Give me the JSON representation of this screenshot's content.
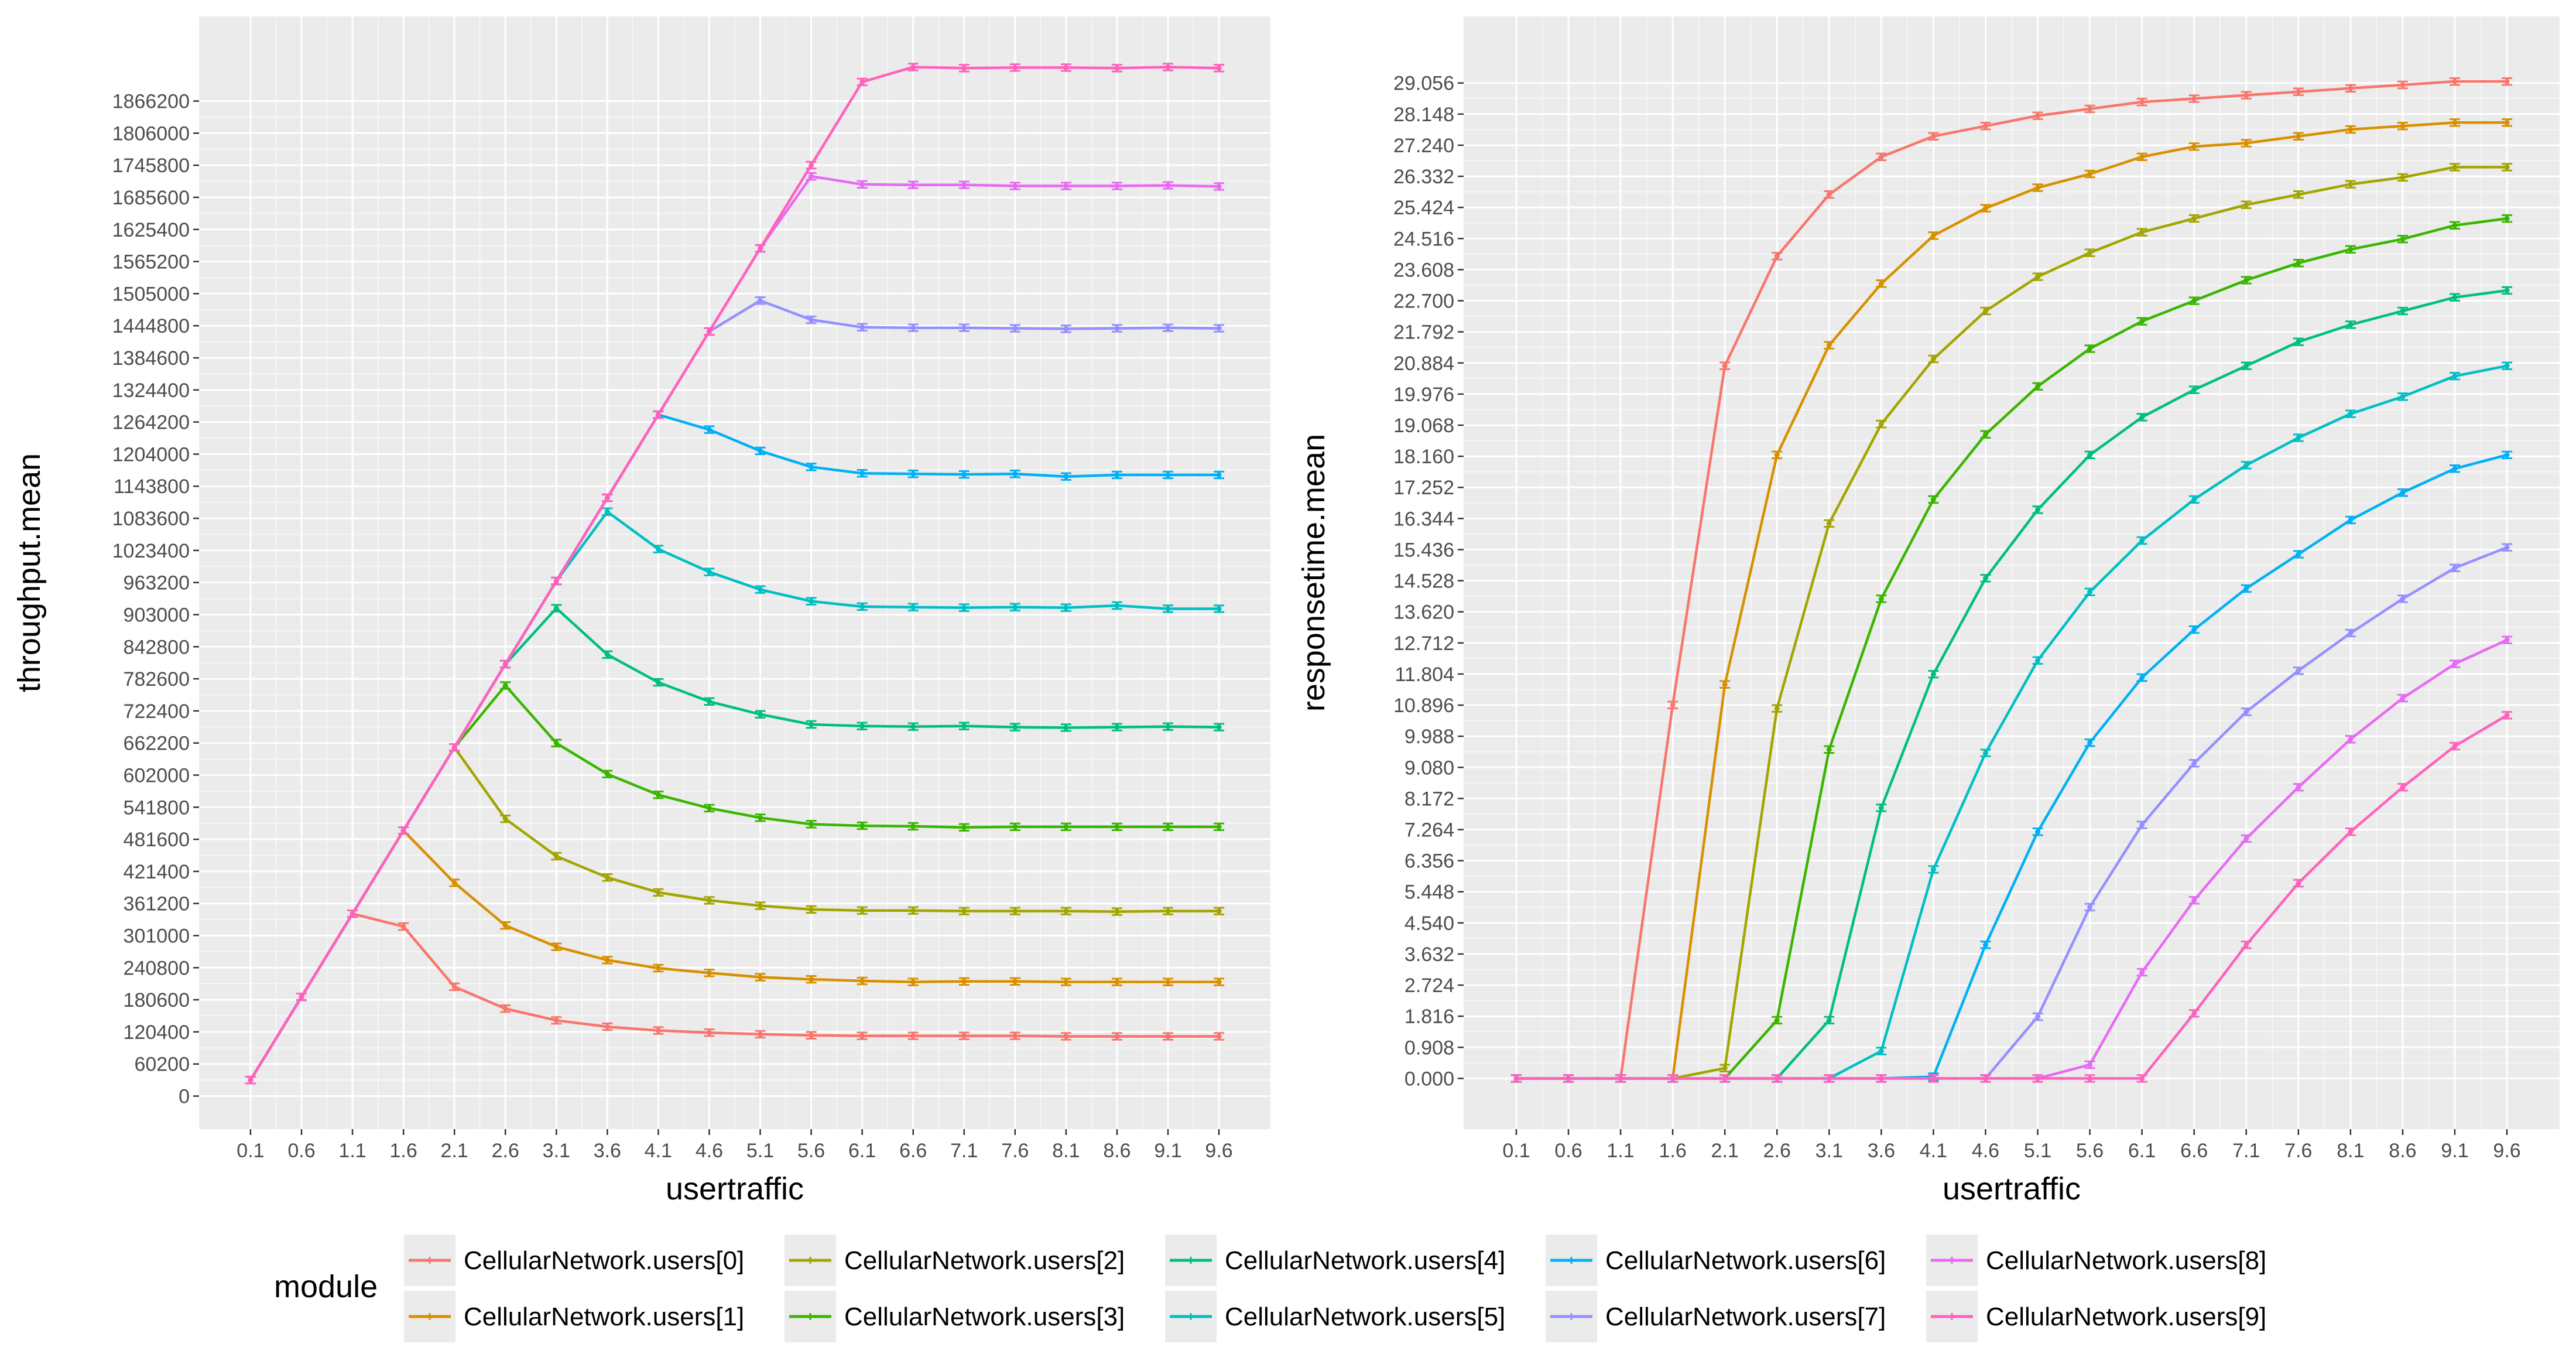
{
  "colors": {
    "panel_bg": "#ebebeb",
    "grid_major": "#ffffff",
    "tick_text": "#4d4d4d",
    "tick_mark": "#333333"
  },
  "legend": {
    "title": "module",
    "position": "bottom",
    "entries": [
      {
        "name": "CellularNetwork.users[0]",
        "color": "#F8766D"
      },
      {
        "name": "CellularNetwork.users[1]",
        "color": "#D89000"
      },
      {
        "name": "CellularNetwork.users[2]",
        "color": "#A3A500"
      },
      {
        "name": "CellularNetwork.users[3]",
        "color": "#39B600"
      },
      {
        "name": "CellularNetwork.users[4]",
        "color": "#00BF7D"
      },
      {
        "name": "CellularNetwork.users[5]",
        "color": "#00BFC4"
      },
      {
        "name": "CellularNetwork.users[6]",
        "color": "#00B0F6"
      },
      {
        "name": "CellularNetwork.users[7]",
        "color": "#9590FF"
      },
      {
        "name": "CellularNetwork.users[8]",
        "color": "#E76BF3"
      },
      {
        "name": "CellularNetwork.users[9]",
        "color": "#FF62BC"
      }
    ]
  },
  "chart_data": [
    {
      "type": "line",
      "title": "",
      "xlabel": "usertraffic",
      "ylabel": "throughput.mean",
      "grid": true,
      "error_bars": true,
      "x": [
        0.1,
        0.6,
        1.1,
        1.6,
        2.1,
        2.6,
        3.1,
        3.6,
        4.1,
        4.6,
        5.1,
        5.6,
        6.1,
        6.6,
        7.1,
        7.6,
        8.1,
        8.6,
        9.1,
        9.6
      ],
      "x_tick_labels": [
        "0.1",
        "0.6",
        "1.1",
        "1.6",
        "2.1",
        "2.6",
        "3.1",
        "3.6",
        "4.1",
        "4.6",
        "5.1",
        "5.6",
        "6.1",
        "6.6",
        "7.1",
        "7.6",
        "8.1",
        "8.6",
        "9.1",
        "9.6"
      ],
      "xlim": [
        -0.405,
        10.105
      ],
      "ylim": [
        -62000,
        2025000
      ],
      "y_ticks": [
        0,
        60200,
        120400,
        180600,
        240800,
        301000,
        361200,
        421400,
        481600,
        541800,
        602000,
        662200,
        722400,
        782600,
        842800,
        903000,
        963200,
        1023400,
        1083600,
        1143800,
        1204000,
        1264200,
        1324400,
        1384600,
        1444800,
        1505000,
        1565200,
        1625400,
        1685600,
        1745800,
        1806000,
        1866200
      ],
      "y_tick_labels": [
        "0",
        "60200",
        "120400",
        "180600",
        "240800",
        "301000",
        "361200",
        "421400",
        "481600",
        "541800",
        "602000",
        "662200",
        "722400",
        "782600",
        "842800",
        "903000",
        "963200",
        "1023400",
        "1083600",
        "1143800",
        "1204000",
        "1264200",
        "1324400",
        "1384600",
        "1444800",
        "1505000",
        "1565200",
        "1625400",
        "1685600",
        "1745800",
        "1806000",
        "1866200"
      ],
      "series": [
        {
          "name": "CellularNetwork.users[0]",
          "values": [
            30000,
            186000,
            342000,
            318000,
            205000,
            164000,
            142000,
            130000,
            123000,
            119000,
            116000,
            114000,
            113000,
            113000,
            113000,
            113000,
            112000,
            112000,
            112000,
            112000
          ]
        },
        {
          "name": "CellularNetwork.users[1]",
          "values": [
            30000,
            186000,
            342000,
            498000,
            400000,
            320000,
            280000,
            255000,
            240000,
            231000,
            223000,
            219000,
            216000,
            214000,
            215000,
            215000,
            214000,
            214000,
            214000,
            214000
          ]
        },
        {
          "name": "CellularNetwork.users[2]",
          "values": [
            30000,
            186000,
            342000,
            498000,
            654000,
            520000,
            450000,
            410000,
            382000,
            367000,
            357000,
            350000,
            348000,
            348000,
            347000,
            347000,
            347000,
            346000,
            347000,
            347000
          ]
        },
        {
          "name": "CellularNetwork.users[3]",
          "values": [
            30000,
            186000,
            342000,
            498000,
            654000,
            770000,
            662000,
            604000,
            565000,
            540000,
            522000,
            510000,
            507000,
            506000,
            504000,
            505000,
            505000,
            505000,
            505000,
            505000
          ]
        },
        {
          "name": "CellularNetwork.users[4]",
          "values": [
            30000,
            186000,
            342000,
            498000,
            654000,
            810000,
            915000,
            828000,
            776000,
            740000,
            716000,
            697000,
            694000,
            693000,
            694000,
            692000,
            691000,
            692000,
            693000,
            692000
          ]
        },
        {
          "name": "CellularNetwork.users[5]",
          "values": [
            30000,
            186000,
            342000,
            498000,
            654000,
            810000,
            966000,
            1096000,
            1026000,
            983000,
            950000,
            928000,
            918000,
            917000,
            916000,
            917000,
            916000,
            920000,
            914000,
            914000
          ]
        },
        {
          "name": "CellularNetwork.users[6]",
          "values": [
            30000,
            186000,
            342000,
            498000,
            654000,
            810000,
            966000,
            1122000,
            1278000,
            1250000,
            1210000,
            1180000,
            1168000,
            1167000,
            1166000,
            1167000,
            1162000,
            1165000,
            1165000,
            1165000
          ]
        },
        {
          "name": "CellularNetwork.users[7]",
          "values": [
            30000,
            186000,
            342000,
            498000,
            654000,
            810000,
            966000,
            1122000,
            1278000,
            1434000,
            1492000,
            1456000,
            1442000,
            1441000,
            1441000,
            1440000,
            1439000,
            1440000,
            1441000,
            1440000
          ]
        },
        {
          "name": "CellularNetwork.users[8]",
          "values": [
            30000,
            186000,
            342000,
            498000,
            654000,
            810000,
            966000,
            1122000,
            1278000,
            1434000,
            1590000,
            1725000,
            1710000,
            1709000,
            1709000,
            1707000,
            1707000,
            1707000,
            1708000,
            1706000
          ]
        },
        {
          "name": "CellularNetwork.users[9]",
          "values": [
            30000,
            186000,
            342000,
            498000,
            654000,
            810000,
            966000,
            1122000,
            1278000,
            1434000,
            1590000,
            1746000,
            1902000,
            1930000,
            1928000,
            1929000,
            1929000,
            1928000,
            1930000,
            1928000
          ]
        }
      ]
    },
    {
      "type": "line",
      "title": "",
      "xlabel": "usertraffic",
      "ylabel": "responsetime.mean",
      "grid": true,
      "error_bars": true,
      "x": [
        0.1,
        0.6,
        1.1,
        1.6,
        2.1,
        2.6,
        3.1,
        3.6,
        4.1,
        4.6,
        5.1,
        5.6,
        6.1,
        6.6,
        7.1,
        7.6,
        8.1,
        8.6,
        9.1,
        9.6
      ],
      "x_tick_labels": [
        "0.1",
        "0.6",
        "1.1",
        "1.6",
        "2.1",
        "2.6",
        "3.1",
        "3.6",
        "4.1",
        "4.6",
        "5.1",
        "5.6",
        "6.1",
        "6.6",
        "7.1",
        "7.6",
        "8.1",
        "8.6",
        "9.1",
        "9.6"
      ],
      "xlim": [
        -0.405,
        10.105
      ],
      "ylim": [
        -1.48,
        31.0
      ],
      "y_ticks": [
        0.0,
        0.908,
        1.816,
        2.724,
        3.632,
        4.54,
        5.448,
        6.356,
        7.264,
        8.172,
        9.08,
        9.988,
        10.896,
        11.804,
        12.712,
        13.62,
        14.528,
        15.436,
        16.344,
        17.252,
        18.16,
        19.068,
        19.976,
        20.884,
        21.792,
        22.7,
        23.608,
        24.516,
        25.424,
        26.332,
        27.24,
        28.148,
        29.056
      ],
      "y_tick_labels": [
        "0.000",
        "0.908",
        "1.816",
        "2.724",
        "3.632",
        "4.540",
        "5.448",
        "6.356",
        "7.264",
        "8.172",
        "9.080",
        "9.988",
        "10.896",
        "11.804",
        "12.712",
        "13.620",
        "14.528",
        "15.436",
        "16.344",
        "17.252",
        "18.160",
        "19.068",
        "19.976",
        "20.884",
        "21.792",
        "22.700",
        "23.608",
        "24.516",
        "25.424",
        "26.332",
        "27.240",
        "28.148",
        "29.056"
      ],
      "series": [
        {
          "name": "CellularNetwork.users[0]",
          "values": [
            0,
            0,
            0,
            10.9,
            20.8,
            24.0,
            25.8,
            26.9,
            27.5,
            27.8,
            28.1,
            28.3,
            28.5,
            28.6,
            28.7,
            28.8,
            28.9,
            29.0,
            29.1,
            29.1
          ]
        },
        {
          "name": "CellularNetwork.users[1]",
          "values": [
            0,
            0,
            0,
            0,
            11.5,
            18.2,
            21.4,
            23.2,
            24.6,
            25.4,
            26.0,
            26.4,
            26.9,
            27.2,
            27.3,
            27.5,
            27.7,
            27.8,
            27.9,
            27.9
          ]
        },
        {
          "name": "CellularNetwork.users[2]",
          "values": [
            0,
            0,
            0,
            0,
            0.3,
            10.8,
            16.2,
            19.1,
            21.0,
            22.4,
            23.4,
            24.1,
            24.7,
            25.1,
            25.5,
            25.8,
            26.1,
            26.3,
            26.6,
            26.6
          ]
        },
        {
          "name": "CellularNetwork.users[3]",
          "values": [
            0,
            0,
            0,
            0,
            0,
            1.7,
            9.6,
            14.0,
            16.9,
            18.8,
            20.2,
            21.3,
            22.1,
            22.7,
            23.3,
            23.8,
            24.2,
            24.5,
            24.9,
            25.1
          ]
        },
        {
          "name": "CellularNetwork.users[4]",
          "values": [
            0,
            0,
            0,
            0,
            0,
            0,
            1.7,
            7.9,
            11.8,
            14.6,
            16.6,
            18.2,
            19.3,
            20.1,
            20.8,
            21.5,
            22.0,
            22.4,
            22.8,
            23.0
          ]
        },
        {
          "name": "CellularNetwork.users[5]",
          "values": [
            0,
            0,
            0,
            0,
            0,
            0,
            0,
            0.8,
            6.1,
            9.5,
            12.2,
            14.2,
            15.7,
            16.9,
            17.9,
            18.7,
            19.4,
            19.9,
            20.5,
            20.8
          ]
        },
        {
          "name": "CellularNetwork.users[6]",
          "values": [
            0,
            0,
            0,
            0,
            0,
            0,
            0,
            0,
            0.05,
            3.9,
            7.2,
            9.8,
            11.7,
            13.1,
            14.3,
            15.3,
            16.3,
            17.1,
            17.8,
            18.2
          ]
        },
        {
          "name": "CellularNetwork.users[7]",
          "values": [
            0,
            0,
            0,
            0,
            0,
            0,
            0,
            0,
            0,
            0,
            1.8,
            5.0,
            7.4,
            9.2,
            10.7,
            11.9,
            13.0,
            14.0,
            14.9,
            15.5
          ]
        },
        {
          "name": "CellularNetwork.users[8]",
          "values": [
            0,
            0,
            0,
            0,
            0,
            0,
            0,
            0,
            0,
            0,
            0,
            0.4,
            3.1,
            5.2,
            7.0,
            8.5,
            9.9,
            11.1,
            12.1,
            12.8
          ]
        },
        {
          "name": "CellularNetwork.users[9]",
          "values": [
            0,
            0,
            0,
            0,
            0,
            0,
            0,
            0,
            0,
            0,
            0,
            0,
            0,
            1.9,
            3.9,
            5.7,
            7.2,
            8.5,
            9.7,
            10.6
          ]
        }
      ]
    }
  ]
}
